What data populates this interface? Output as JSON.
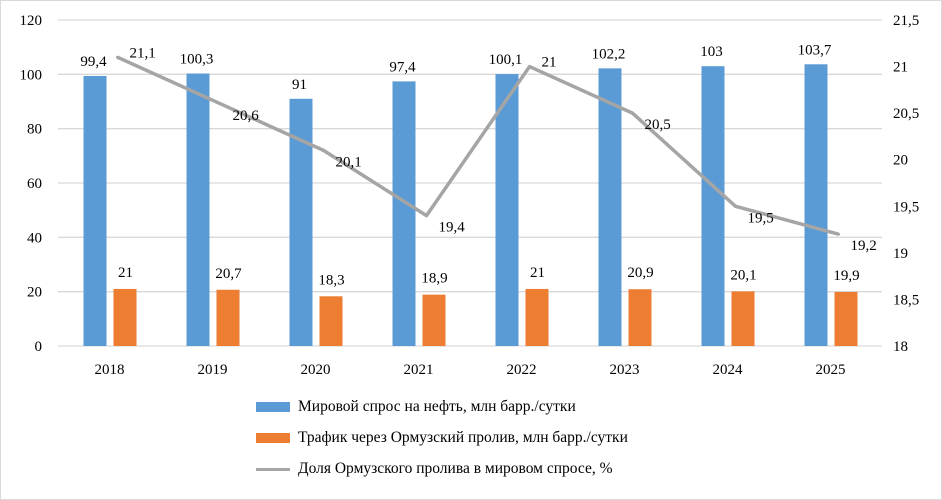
{
  "chart_data": {
    "type": "bar+line",
    "title": "",
    "categories": [
      "2018",
      "2019",
      "2020",
      "2021",
      "2022",
      "2023",
      "2024",
      "2025"
    ],
    "series": [
      {
        "name": "Мировой спрос на нефть, млн барр./сутки",
        "type": "bar",
        "axis": "left",
        "color": "#5b9bd5",
        "values": [
          99.4,
          100.3,
          91,
          97.4,
          100.1,
          102.2,
          103,
          103.7
        ],
        "labels": [
          "99,4",
          "100,3",
          "91",
          "97,4",
          "100,1",
          "102,2",
          "103",
          "103,7"
        ]
      },
      {
        "name": "Трафик через Ормузский пролив, млн барр./сутки",
        "type": "bar",
        "axis": "left",
        "color": "#ed7d31",
        "values": [
          21,
          20.7,
          18.3,
          18.9,
          21,
          20.9,
          20.1,
          19.9
        ],
        "labels": [
          "21",
          "20,7",
          "18,3",
          "18,9",
          "21",
          "20,9",
          "20,1",
          "19,9"
        ]
      },
      {
        "name": "Доля Ормузского пролива в мировом спросе, %",
        "type": "line",
        "axis": "right",
        "color": "#a5a5a5",
        "values": [
          21.1,
          20.6,
          20.1,
          19.4,
          21,
          20.5,
          19.5,
          19.2
        ],
        "labels": [
          "21,1",
          "20,6",
          "20,1",
          "19,4",
          "21",
          "20,5",
          "19,5",
          "19,2"
        ]
      }
    ],
    "left_axis": {
      "min": 0,
      "max": 120,
      "ticks": [
        "0",
        "20",
        "40",
        "60",
        "80",
        "100",
        "120"
      ]
    },
    "right_axis": {
      "min": 18,
      "max": 21.5,
      "ticks": [
        "18",
        "18,5",
        "19",
        "19,5",
        "20",
        "20,5",
        "21",
        "21,5"
      ]
    },
    "grid": true,
    "legend_position": "bottom"
  }
}
